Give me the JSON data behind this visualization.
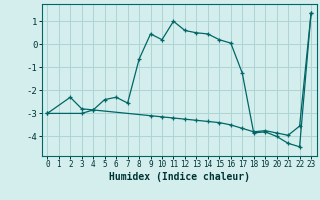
{
  "xlabel": "Humidex (Indice chaleur)",
  "bg_color": "#d4eeee",
  "grid_color": "#aed4d4",
  "line_color": "#006666",
  "xlim": [
    -0.5,
    23.5
  ],
  "ylim": [
    -4.85,
    1.75
  ],
  "xticks": [
    0,
    1,
    2,
    3,
    4,
    5,
    6,
    7,
    8,
    9,
    10,
    11,
    12,
    13,
    14,
    15,
    16,
    17,
    18,
    19,
    20,
    21,
    22,
    23
  ],
  "yticks": [
    -4,
    -3,
    -2,
    -1,
    0,
    1
  ],
  "series1_x": [
    0,
    2,
    3,
    4,
    5,
    6,
    7,
    8,
    9,
    10,
    11,
    12,
    13,
    14,
    15,
    16,
    17,
    18,
    19,
    20,
    21,
    22,
    23
  ],
  "series1_y": [
    -3.0,
    -2.3,
    -2.8,
    -2.85,
    -2.4,
    -2.3,
    -2.55,
    -0.65,
    0.45,
    0.2,
    1.0,
    0.6,
    0.5,
    0.45,
    0.2,
    0.05,
    -1.25,
    -3.85,
    -3.8,
    -4.0,
    -4.3,
    -4.45,
    1.35
  ],
  "series2_x": [
    0,
    3,
    4,
    9,
    10,
    11,
    12,
    13,
    14,
    15,
    16,
    17,
    18,
    19,
    20,
    21,
    22,
    23
  ],
  "series2_y": [
    -3.0,
    -3.0,
    -2.85,
    -3.1,
    -3.15,
    -3.2,
    -3.25,
    -3.3,
    -3.35,
    -3.4,
    -3.5,
    -3.65,
    -3.8,
    -3.75,
    -3.85,
    -3.95,
    -3.55,
    1.35
  ]
}
